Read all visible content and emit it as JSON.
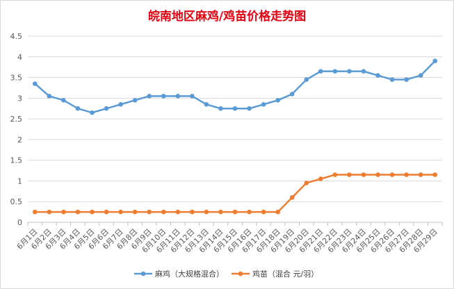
{
  "chart_data": {
    "type": "line",
    "title": "皖南地区麻鸡/鸡苗价格走势图",
    "categories": [
      "6月1日",
      "6月2日",
      "6月3日",
      "6月4日",
      "6月5日",
      "6月6日",
      "6月7日",
      "6月8日",
      "6月9日",
      "6月10日",
      "6月11日",
      "6月12日",
      "6月13日",
      "6月14日",
      "6月15日",
      "6月16日",
      "6月17日",
      "6月18日",
      "6月19日",
      "6月20日",
      "6月21日",
      "6月22日",
      "6月23日",
      "6月24日",
      "6月25日",
      "6月26日",
      "6月27日",
      "6月28日",
      "6月29日"
    ],
    "series": [
      {
        "name": "麻鸡（大规格混合）",
        "color": "#5b9bd5",
        "values": [
          3.35,
          3.05,
          2.95,
          2.75,
          2.65,
          2.75,
          2.85,
          2.95,
          3.05,
          3.05,
          3.05,
          3.05,
          2.85,
          2.75,
          2.75,
          2.75,
          2.85,
          2.95,
          3.1,
          3.45,
          3.65,
          3.65,
          3.65,
          3.65,
          3.55,
          3.45,
          3.45,
          3.55,
          3.9
        ]
      },
      {
        "name": "鸡苗（混合 元/羽）",
        "color": "#ed7d31",
        "values": [
          0.25,
          0.25,
          0.25,
          0.25,
          0.25,
          0.25,
          0.25,
          0.25,
          0.25,
          0.25,
          0.25,
          0.25,
          0.25,
          0.25,
          0.25,
          0.25,
          0.25,
          0.25,
          0.6,
          0.95,
          1.05,
          1.15,
          1.15,
          1.15,
          1.15,
          1.15,
          1.15,
          1.15,
          1.15
        ]
      }
    ],
    "yticks": [
      "0",
      "0.5",
      "1",
      "1.5",
      "2",
      "2.5",
      "3",
      "3.5",
      "4",
      "4.5"
    ],
    "ylim": [
      0,
      4.5
    ],
    "grid": true,
    "legend_position": "bottom"
  }
}
